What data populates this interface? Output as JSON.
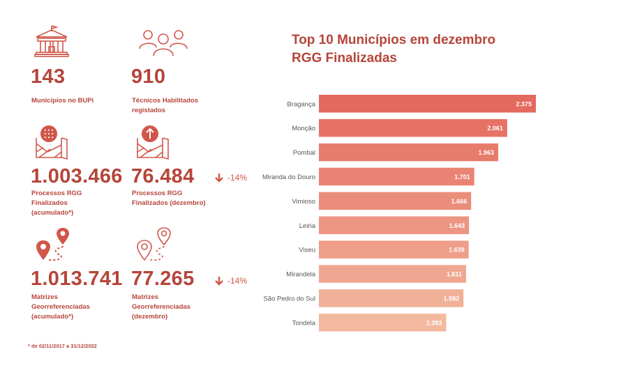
{
  "kpis": {
    "municipios": {
      "value": "143",
      "label": "Municípios no BUPi",
      "icon": "town-hall-icon"
    },
    "tecnicos": {
      "value": "910",
      "label": "Técnicos Habilitados\nregistados",
      "icon": "users-group-icon"
    },
    "processos_acum": {
      "value": "1.003.466",
      "label": "Processos RGG\nFinalizados\n(acumulado*)",
      "icon": "map-grid-icon"
    },
    "processos_dez": {
      "value": "76.484",
      "label": "Processos RGG\nFinalizados (dezembro)",
      "icon": "map-upload-icon",
      "delta": "-14%"
    },
    "matrizes_acum": {
      "value": "1.013.741",
      "label": "Matrizes\nGeorreferenciadas\n(acumulado*)",
      "icon": "route-pins-icon"
    },
    "matrizes_dez": {
      "value": "77.265",
      "label": "Matrizes\nGeorreferenciadas\n(dezembro)",
      "icon": "route-pins-outline-icon",
      "delta": "-14%"
    }
  },
  "footnote": "* de 02/11/2017 a 31/12/2022",
  "colors": {
    "accent": "#b5453a",
    "down_arrow": "#d0574a",
    "bar_top": "#e4695e",
    "bar_bottom": "#f3b99f"
  },
  "chart_data": {
    "type": "bar",
    "orientation": "horizontal",
    "title": "Top 10 Municípios em dezembro",
    "subtitle": "RGG Finalizadas",
    "categories": [
      "Bragança",
      "Monção",
      "Pombal",
      "Miranda do Douro",
      "Vimioso",
      "Leiria",
      "Viseu",
      "Mirandela",
      "São Pedro do Sul",
      "Tondela"
    ],
    "values": [
      2375,
      2061,
      1963,
      1701,
      1666,
      1643,
      1639,
      1611,
      1582,
      1393
    ],
    "value_labels": [
      "2.375",
      "2.061",
      "1.963",
      "1.701",
      "1.666",
      "1.643",
      "1.639",
      "1.611",
      "1.582",
      "1.393"
    ],
    "xlim": [
      0,
      2375
    ],
    "grid": false,
    "legend": "none"
  }
}
